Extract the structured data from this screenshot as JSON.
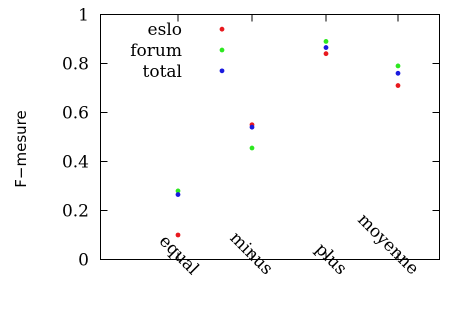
{
  "chart_data": {
    "type": "scatter",
    "categories": [
      "equal",
      "minus",
      "plus",
      "moyenne"
    ],
    "ylabel": "F−mesure",
    "ylim": [
      0,
      1
    ],
    "yticks": [
      "0",
      "0.2",
      "0.4",
      "0.6",
      "0.8",
      "1"
    ],
    "legend_position": "top-left",
    "series": [
      {
        "name": "eslo",
        "color": "#e8191e",
        "values": [
          0.1,
          0.55,
          0.84,
          0.71
        ],
        "legend_value": 0.94
      },
      {
        "name": "forum",
        "color": "#2de820",
        "values": [
          0.28,
          0.455,
          0.89,
          0.79
        ],
        "legend_value": 0.855
      },
      {
        "name": "total",
        "color": "#1a1adf",
        "values": [
          0.265,
          0.54,
          0.865,
          0.76
        ],
        "legend_value": 0.77
      }
    ],
    "grid": false
  }
}
